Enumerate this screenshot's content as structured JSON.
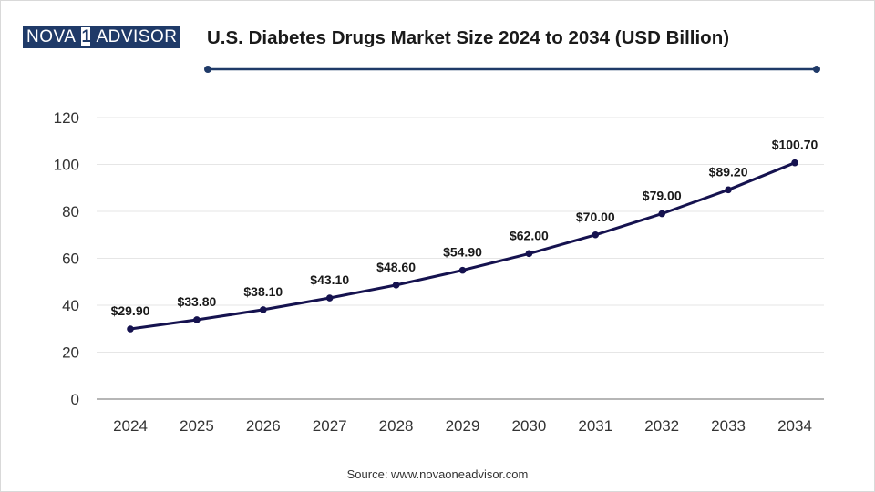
{
  "brand": {
    "left": "NOVA",
    "mark": "1",
    "right": "ADVISOR"
  },
  "colors": {
    "line": "#15124f",
    "brand": "#1f3a68",
    "grid": "#e6e6e6",
    "axis": "#9e9e9e"
  },
  "source_text": "Source: www.novaoneadvisor.com",
  "chart_data": {
    "type": "line",
    "title": "U.S. Diabetes Drugs Market Size 2024 to 2034 (USD Billion)",
    "xlabel": "",
    "ylabel": "",
    "categories": [
      "2024",
      "2025",
      "2026",
      "2027",
      "2028",
      "2029",
      "2030",
      "2031",
      "2032",
      "2033",
      "2034"
    ],
    "series": [
      {
        "name": "Market Size (USD Billion)",
        "values": [
          29.9,
          33.8,
          38.1,
          43.1,
          48.6,
          54.9,
          62.0,
          70.0,
          79.0,
          89.2,
          100.7
        ],
        "labels": [
          "$29.90",
          "$33.80",
          "$38.10",
          "$43.10",
          "$48.60",
          "$54.90",
          "$62.00",
          "$70.00",
          "$79.00",
          "$89.20",
          "$100.70"
        ]
      }
    ],
    "ylim": [
      0,
      120
    ],
    "yticks": [
      "0",
      "20",
      "40",
      "60",
      "80",
      "100",
      "120"
    ],
    "grid": true
  }
}
